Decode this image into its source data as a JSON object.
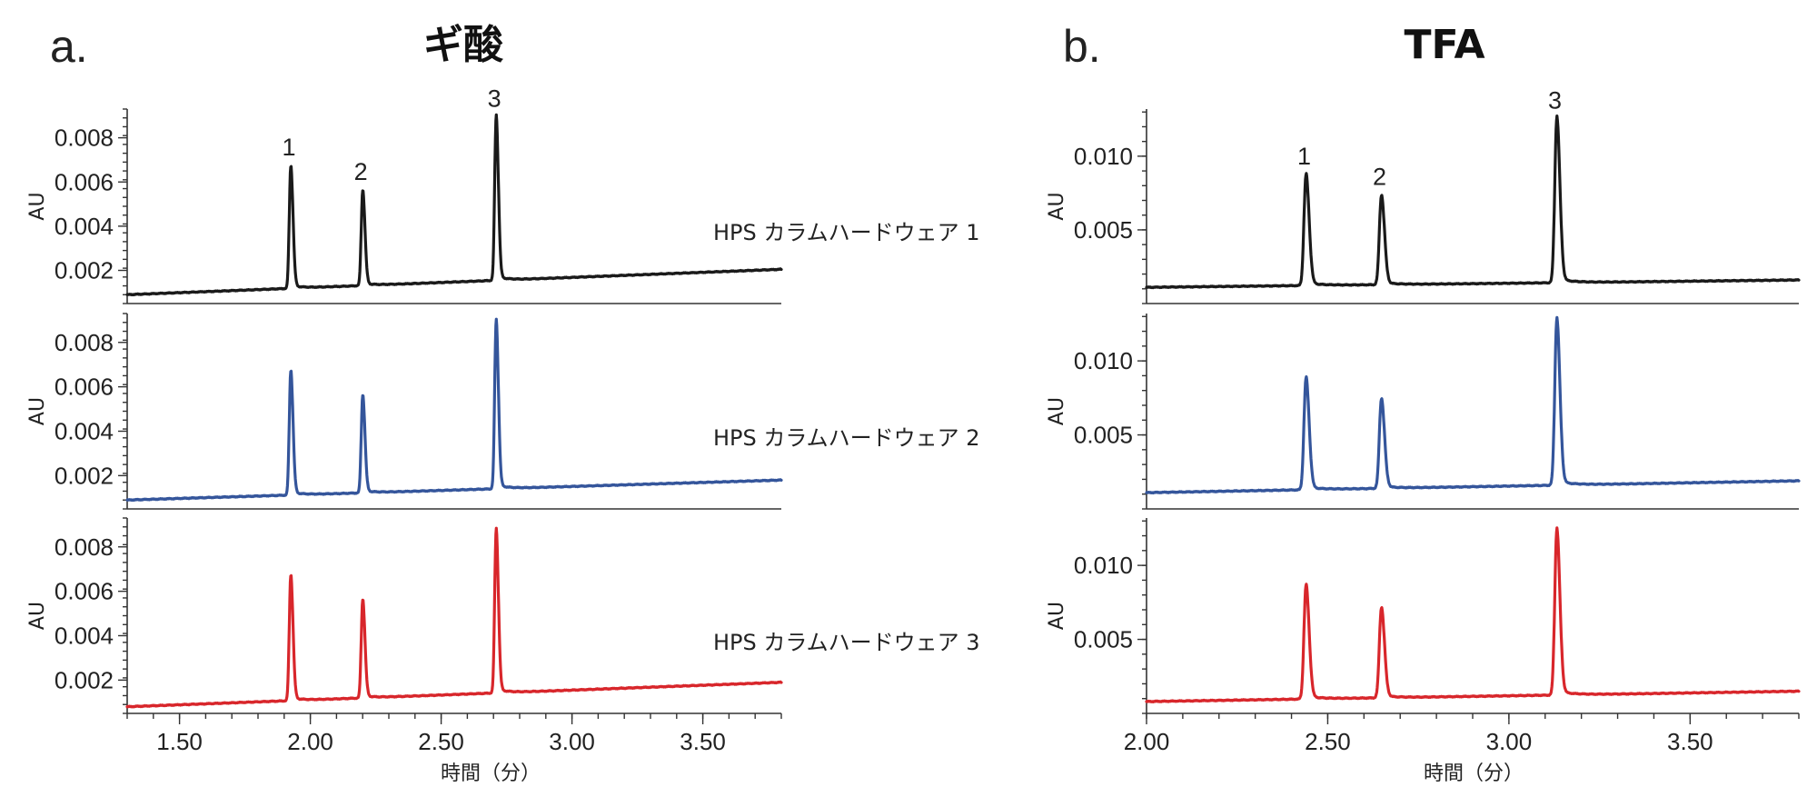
{
  "chart_data": [
    {
      "type": "line",
      "panel_letter": "a.",
      "title": "ギ酸",
      "xlabel": "時間（分）",
      "ylabel": "AU",
      "xlim": [
        1.3,
        3.8
      ],
      "x_ticks": [
        "1.50",
        "2.00",
        "2.50",
        "3.00",
        "3.50"
      ],
      "ylim": [
        0.0005,
        0.0093
      ],
      "y_ticks": [
        "0.002",
        "0.004",
        "0.006",
        "0.008"
      ],
      "peak_labels": [
        "1",
        "2",
        "3"
      ],
      "series": [
        {
          "name": "HPS カラムハードウェア 1",
          "color": "#1a1a1a",
          "baseline_start": 0.0009,
          "baseline_end": 0.00205,
          "peaks": [
            {
              "label": "1",
              "x": 1.925,
              "height": 0.0067
            },
            {
              "label": "2",
              "x": 2.2,
              "height": 0.0056
            },
            {
              "label": "3",
              "x": 2.71,
              "height": 0.0089
            }
          ]
        },
        {
          "name": "HPS カラムハードウェア 2",
          "color": "#34559b",
          "baseline_start": 0.0009,
          "baseline_end": 0.0018,
          "peaks": [
            {
              "label": "1",
              "x": 1.925,
              "height": 0.0067
            },
            {
              "label": "2",
              "x": 2.2,
              "height": 0.0056
            },
            {
              "label": "3",
              "x": 2.71,
              "height": 0.0089
            }
          ]
        },
        {
          "name": "HPS カラムハードウェア 3",
          "color": "#d8262b",
          "baseline_start": 0.0008,
          "baseline_end": 0.0019,
          "peaks": [
            {
              "label": "1",
              "x": 1.925,
              "height": 0.0067
            },
            {
              "label": "2",
              "x": 2.2,
              "height": 0.0056
            },
            {
              "label": "3",
              "x": 2.71,
              "height": 0.0087
            }
          ]
        }
      ]
    },
    {
      "type": "line",
      "panel_letter": "b.",
      "title": "TFA",
      "xlabel": "時間（分）",
      "ylabel": "AU",
      "xlim": [
        2.0,
        3.8
      ],
      "x_ticks": [
        "2.00",
        "2.50",
        "3.00",
        "3.50"
      ],
      "ylim": [
        0.0,
        0.0132
      ],
      "y_ticks": [
        "0.005",
        "0.010"
      ],
      "peak_labels": [
        "1",
        "2",
        "3"
      ],
      "series": [
        {
          "color": "#1a1a1a",
          "baseline_start": 0.0011,
          "baseline_end": 0.0016,
          "peaks": [
            {
              "label": "1",
              "x": 2.44,
              "height": 0.0087
            },
            {
              "label": "2",
              "x": 2.648,
              "height": 0.0073
            },
            {
              "label": "3",
              "x": 3.132,
              "height": 0.0125
            }
          ]
        },
        {
          "color": "#34559b",
          "baseline_start": 0.0011,
          "baseline_end": 0.0019,
          "peaks": [
            {
              "label": "1",
              "x": 2.44,
              "height": 0.0088
            },
            {
              "label": "2",
              "x": 2.648,
              "height": 0.0074
            },
            {
              "label": "3",
              "x": 3.132,
              "height": 0.0127
            }
          ]
        },
        {
          "color": "#d8262b",
          "baseline_start": 0.0008,
          "baseline_end": 0.0015,
          "peaks": [
            {
              "label": "1",
              "x": 2.44,
              "height": 0.0086
            },
            {
              "label": "2",
              "x": 2.648,
              "height": 0.0071
            },
            {
              "label": "3",
              "x": 3.132,
              "height": 0.0123
            }
          ]
        }
      ]
    }
  ]
}
